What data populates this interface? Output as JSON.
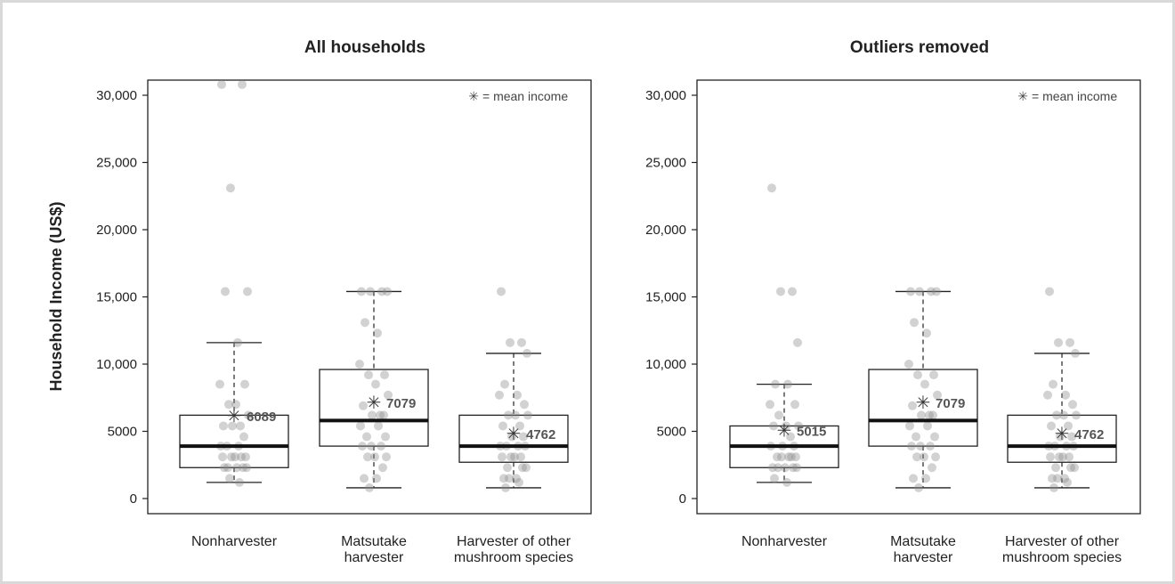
{
  "y_axis_label": "Household Income (US$)",
  "legend_text": "= mean income",
  "chart_data": [
    {
      "type": "box",
      "title": "All households",
      "ylabel": "Household Income (US$)",
      "ylim": [
        0,
        31000
      ],
      "yticks": [
        0,
        5000,
        10000,
        15000,
        20000,
        25000,
        30000
      ],
      "ytick_labels": [
        "0",
        "5000",
        "10,000",
        "15,000",
        "20,000",
        "25,000",
        "30,000"
      ],
      "categories": [
        "Nonharvester",
        "Matsutake harvester",
        "Harvester of other mushroom species"
      ],
      "category_lines": [
        [
          "Nonharvester"
        ],
        [
          "Matsutake",
          "harvester"
        ],
        [
          "Harvester of other",
          "mushroom species"
        ]
      ],
      "boxes": [
        {
          "whisker_low": 1200,
          "q1": 2300,
          "median": 3900,
          "q3": 6200,
          "whisker_high": 11600,
          "mean": 6089,
          "mean_label": "6089",
          "points": [
            30800,
            30800,
            23100,
            15400,
            15400,
            11600,
            8500,
            8500,
            7000,
            7000,
            6200,
            5400,
            5400,
            5400,
            4600,
            3900,
            3900,
            3900,
            3100,
            3100,
            3100,
            3100,
            3100,
            2300,
            2300,
            2300,
            2300,
            2300,
            1500,
            1200
          ]
        },
        {
          "whisker_low": 800,
          "q1": 3900,
          "median": 5800,
          "q3": 9600,
          "whisker_high": 15400,
          "mean": 7079,
          "mean_label": "7079",
          "points": [
            15400,
            15400,
            15400,
            15400,
            13100,
            12300,
            10000,
            9200,
            9200,
            8500,
            7700,
            6900,
            6200,
            6200,
            6200,
            5400,
            5400,
            4600,
            4600,
            3900,
            3900,
            3900,
            3100,
            3100,
            3100,
            2300,
            1500,
            1500,
            800
          ]
        },
        {
          "whisker_low": 800,
          "q1": 2700,
          "median": 3900,
          "q3": 6200,
          "whisker_high": 10800,
          "mean": 4762,
          "mean_label": "4762",
          "points": [
            15400,
            11600,
            11600,
            10800,
            8500,
            7700,
            7700,
            7000,
            6200,
            6200,
            6200,
            5400,
            5400,
            4600,
            4600,
            3900,
            3900,
            3900,
            3900,
            3100,
            3100,
            3100,
            3100,
            2300,
            2300,
            2300,
            1500,
            1500,
            1500,
            1200,
            800
          ]
        }
      ]
    },
    {
      "type": "box",
      "title": "Outliers removed",
      "ylabel": "",
      "ylim": [
        0,
        31000
      ],
      "yticks": [
        0,
        5000,
        10000,
        15000,
        20000,
        25000,
        30000
      ],
      "ytick_labels": [
        "0",
        "5000",
        "10,000",
        "15,000",
        "20,000",
        "25,000",
        "30,000"
      ],
      "categories": [
        "Nonharvester",
        "Matsutake harvester",
        "Harvester of other mushroom species"
      ],
      "category_lines": [
        [
          "Nonharvester"
        ],
        [
          "Matsutake",
          "harvester"
        ],
        [
          "Harvester of other",
          "mushroom species"
        ]
      ],
      "boxes": [
        {
          "whisker_low": 1200,
          "q1": 2300,
          "median": 3900,
          "q3": 5400,
          "whisker_high": 8500,
          "mean": 5015,
          "mean_label": "5015",
          "points": [
            23100,
            15400,
            15400,
            11600,
            8500,
            8500,
            7000,
            7000,
            6200,
            5400,
            5400,
            5400,
            4600,
            3900,
            3900,
            3900,
            3100,
            3100,
            3100,
            3100,
            3100,
            2300,
            2300,
            2300,
            2300,
            2300,
            1500,
            1200
          ]
        },
        {
          "whisker_low": 800,
          "q1": 3900,
          "median": 5800,
          "q3": 9600,
          "whisker_high": 15400,
          "mean": 7079,
          "mean_label": "7079",
          "points": [
            15400,
            15400,
            15400,
            15400,
            13100,
            12300,
            10000,
            9200,
            9200,
            8500,
            7700,
            6900,
            6200,
            6200,
            6200,
            5400,
            5400,
            4600,
            4600,
            3900,
            3900,
            3900,
            3100,
            3100,
            3100,
            2300,
            1500,
            1500,
            800
          ]
        },
        {
          "whisker_low": 800,
          "q1": 2700,
          "median": 3900,
          "q3": 6200,
          "whisker_high": 10800,
          "mean": 4762,
          "mean_label": "4762",
          "points": [
            15400,
            11600,
            11600,
            10800,
            8500,
            7700,
            7700,
            7000,
            6200,
            6200,
            6200,
            5400,
            5400,
            4600,
            4600,
            3900,
            3900,
            3900,
            3900,
            3100,
            3100,
            3100,
            3100,
            2300,
            2300,
            2300,
            1500,
            1500,
            1500,
            1200,
            800
          ]
        }
      ]
    }
  ]
}
